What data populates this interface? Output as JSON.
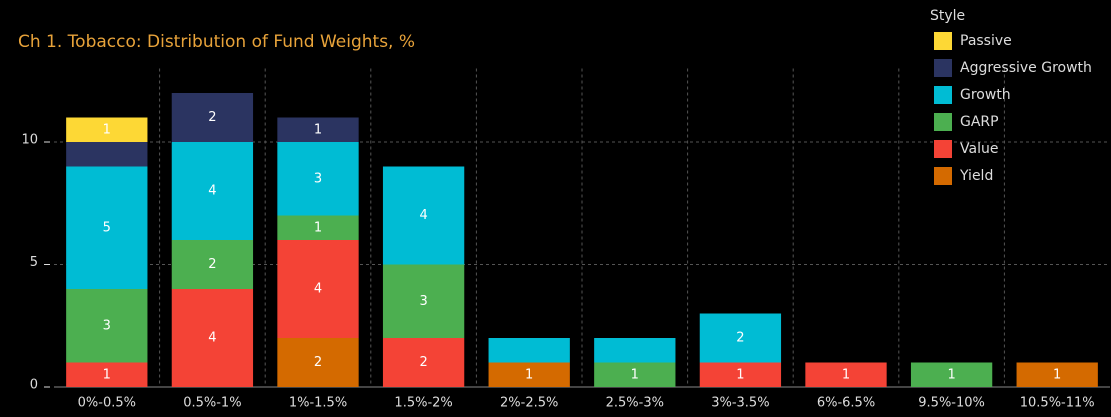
{
  "chart_data": {
    "type": "stacked_bar",
    "title": "Ch 1. Tobacco:  Distribution of Fund Weights, %",
    "legend_title": "Style",
    "categories": [
      "0%-0.5%",
      "0.5%-1%",
      "1%-1.5%",
      "1.5%-2%",
      "2%-2.5%",
      "2.5%-3%",
      "3%-3.5%",
      "6%-6.5%",
      "9.5%-10%",
      "10.5%-11%"
    ],
    "series": [
      {
        "name": "Yield",
        "color": "#d46a00",
        "values": [
          null,
          null,
          2,
          null,
          1,
          null,
          null,
          null,
          null,
          1
        ],
        "value_labels": [
          null,
          null,
          "2",
          null,
          "1",
          null,
          null,
          null,
          null,
          "1"
        ]
      },
      {
        "name": "Value",
        "color": "#f44336",
        "values": [
          1,
          4,
          4,
          2,
          null,
          null,
          1,
          1,
          null,
          null
        ],
        "value_labels": [
          "1",
          "4",
          "4",
          "2",
          null,
          null,
          "1",
          "1",
          null,
          null
        ]
      },
      {
        "name": "GARP",
        "color": "#4caf50",
        "values": [
          3,
          2,
          1,
          3,
          null,
          1,
          null,
          null,
          1,
          null
        ],
        "value_labels": [
          "3",
          "2",
          "1",
          "3",
          null,
          "1",
          null,
          null,
          "1",
          null
        ]
      },
      {
        "name": "Growth",
        "color": "#00bcd4",
        "values": [
          5,
          4,
          3,
          4,
          1,
          1,
          2,
          null,
          null,
          null
        ],
        "value_labels": [
          "5",
          "4",
          "3",
          "4",
          null,
          null,
          "2",
          null,
          null,
          null
        ]
      },
      {
        "name": "Aggressive Growth",
        "color": "#2b3461",
        "values": [
          1,
          2,
          1,
          null,
          null,
          null,
          null,
          null,
          null,
          null
        ],
        "value_labels": [
          null,
          "2",
          "1",
          null,
          null,
          null,
          null,
          null,
          null,
          null
        ]
      },
      {
        "name": "Passive",
        "color": "#fdd835",
        "values": [
          1,
          null,
          null,
          null,
          null,
          null,
          null,
          null,
          null,
          null
        ],
        "value_labels": [
          "1",
          null,
          null,
          null,
          null,
          null,
          null,
          null,
          null,
          null
        ]
      }
    ],
    "ylim": [
      0,
      13
    ],
    "yticks": [
      0,
      5,
      10
    ],
    "grid": true,
    "legend": "top-right"
  }
}
